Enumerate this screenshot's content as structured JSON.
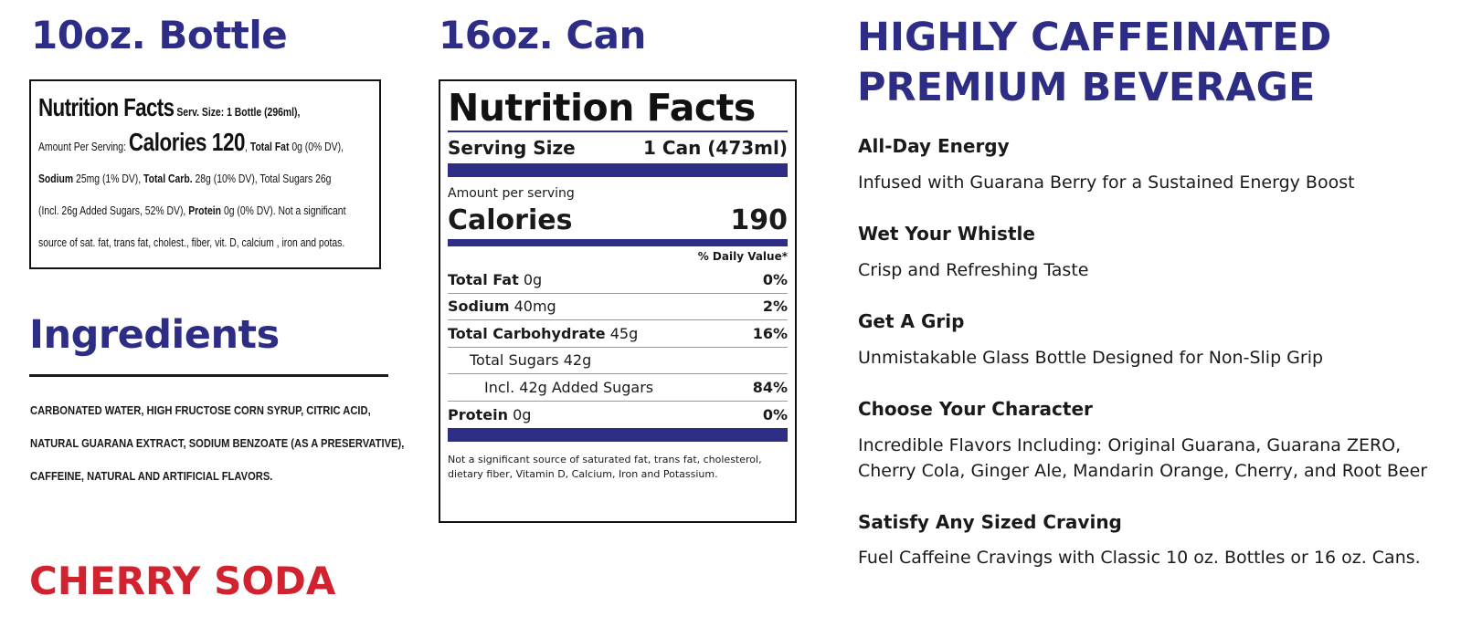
{
  "bottle": {
    "heading": "10oz. Bottle",
    "label": {
      "title": "Nutrition Facts",
      "serving": "Serv. Size: 1 Bottle (296ml),",
      "amount_prefix": "Amount Per Serving:",
      "calories": "Calories 120",
      "after_calories": ",",
      "fat_label": "Total Fat",
      "fat_value": "0g (0% DV),",
      "sodium_label": "Sodium",
      "sodium_value": "25mg (1% DV),",
      "carb_label": "Total Carb.",
      "carb_value": "28g (10% DV), Total Sugars 26g",
      "sugars_incl": "(Incl. 26g Added Sugars, 52% DV),",
      "protein_label": "Protein",
      "protein_value": "0g (0% DV). Not a significant",
      "footnote": "source of sat. fat, trans fat, cholest., fiber, vit. D, calcium , iron and potas."
    }
  },
  "ingredients": {
    "heading": "Ingredients",
    "lines": [
      "CARBONATED WATER, HIGH FRUCTOSE CORN SYRUP, CITRIC ACID,",
      "NATURAL GUARANA EXTRACT, SODIUM BENZOATE (AS A PRESERVATIVE),",
      "CAFFEINE, NATURAL AND ARTIFICIAL FLAVORS."
    ]
  },
  "flavor": "CHERRY SODA",
  "can": {
    "heading": "16oz. Can",
    "label": {
      "title": "Nutrition Facts",
      "serving_label": "Serving Size",
      "serving_value": "1 Can (473ml)",
      "amount_per_serving": "Amount per serving",
      "calories_label": "Calories",
      "calories_value": "190",
      "daily_value_header": "% Daily Value*",
      "rows": [
        {
          "label": "Total Fat",
          "amount": "0g",
          "pct": "0%"
        },
        {
          "label": "Sodium",
          "amount": "40mg",
          "pct": "2%"
        },
        {
          "label": "Total Carbohydrate",
          "amount": "45g",
          "pct": "16%"
        },
        {
          "label": "",
          "amount": "Total Sugars 42g",
          "pct": ""
        },
        {
          "label": "",
          "amount": "Incl. 42g Added Sugars",
          "pct": "84%"
        },
        {
          "label": "Protein",
          "amount": "0g",
          "pct": "0%"
        }
      ],
      "footnote": "Not a significant source of saturated fat, trans fat, cholesterol, dietary fiber, Vitamin D, Calcium, Iron and Potassium."
    }
  },
  "hero": {
    "line1": "HIGHLY CAFFEINATED",
    "line2": "PREMIUM BEVERAGE"
  },
  "features": [
    {
      "title": "All-Day Energy",
      "desc": "Infused with Guarana Berry for a Sustained Energy Boost"
    },
    {
      "title": "Wet Your Whistle",
      "desc": "Crisp and Refreshing Taste"
    },
    {
      "title": "Get A Grip",
      "desc": "Unmistakable Glass Bottle Designed for Non-Slip Grip"
    },
    {
      "title": "Choose Your Character",
      "desc_line1": "Incredible Flavors Including: Original Guarana, Guarana ZERO,",
      "desc_line2": "Cherry Cola, Ginger Ale, Mandarin Orange, Cherry, and Root Beer"
    },
    {
      "title": "Satisfy Any Sized Craving",
      "desc": "Fuel Caffeine Cravings with Classic 10 oz. Bottles or 16 oz. Cans."
    }
  ],
  "colors": {
    "brand_blue": "#2e2d86",
    "cherry_red": "#d12230",
    "text": "#1a1a1a"
  }
}
